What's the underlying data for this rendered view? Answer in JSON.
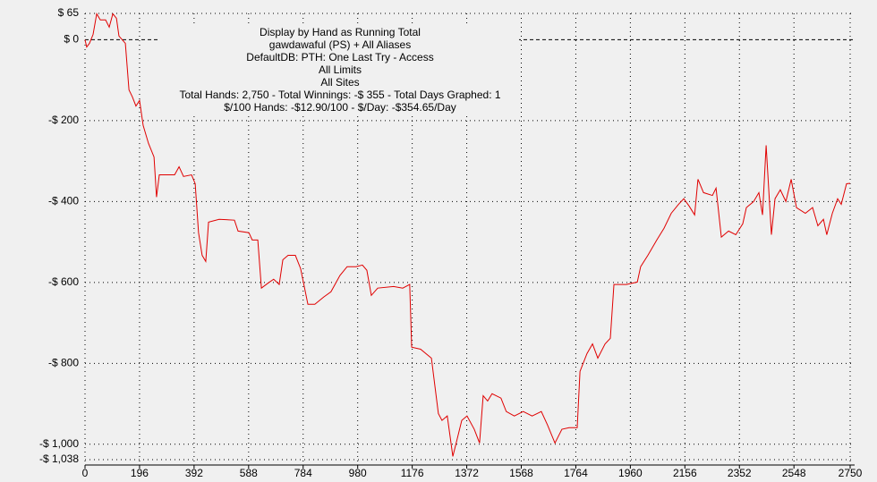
{
  "chart_data": {
    "type": "line",
    "title_lines": [
      "Display by Hand as Running Total",
      "gawdawaful (PS) + All Aliases",
      "DefaultDB: PTH: One Last Try - Access",
      "All Limits",
      "All Sites",
      "Total Hands: 2,750 - Total Winnings: -$ 355 - Total Days Graphed: 1",
      "$/100 Hands: -$12.90/100 - $/Day: -$354.65/Day"
    ],
    "xlim": [
      0,
      2750
    ],
    "xticks": [
      0,
      196,
      392,
      588,
      784,
      980,
      1176,
      1372,
      1568,
      1764,
      1960,
      2156,
      2352,
      2548,
      2750
    ],
    "ylim": [
      -1038,
      65
    ],
    "yticks": [
      {
        "value": 65,
        "label": "$ 65"
      },
      {
        "value": 0,
        "label": "$ 0"
      },
      {
        "value": -200,
        "label": "-$ 200"
      },
      {
        "value": -400,
        "label": "-$ 400"
      },
      {
        "value": -600,
        "label": "-$ 600"
      },
      {
        "value": -800,
        "label": "-$ 800"
      },
      {
        "value": -1000,
        "label": "-$ 1,000"
      },
      {
        "value": -1038,
        "label": "-$ 1,038"
      }
    ],
    "grid": true,
    "series": [
      {
        "color": "#e00000",
        "x": [
          0,
          6,
          16,
          29,
          42,
          55,
          74,
          87,
          100,
          113,
          122,
          145,
          158,
          170,
          183,
          196,
          209,
          228,
          248,
          257,
          267,
          322,
          338,
          354,
          383,
          396,
          408,
          421,
          434,
          444,
          482,
          537,
          550,
          589,
          601,
          621,
          634,
          659,
          678,
          698,
          711,
          730,
          756,
          775,
          801,
          826,
          858,
          884,
          916,
          942,
          974,
          997,
          1013,
          1029,
          1052,
          1109,
          1142,
          1167,
          1174,
          1206,
          1245,
          1257,
          1270,
          1283,
          1302,
          1322,
          1334,
          1354,
          1373,
          1399,
          1418,
          1431,
          1447,
          1463,
          1495,
          1514,
          1543,
          1575,
          1607,
          1640,
          1662,
          1689,
          1714,
          1740,
          1769,
          1779,
          1804,
          1824,
          1843,
          1869,
          1888,
          1901,
          1946,
          1985,
          1997,
          2023,
          2055,
          2081,
          2107,
          2133,
          2152,
          2171,
          2191,
          2203,
          2223,
          2255,
          2268,
          2287,
          2313,
          2339,
          2364,
          2377,
          2403,
          2422,
          2435,
          2448,
          2467,
          2480,
          2499,
          2519,
          2538,
          2557,
          2589,
          2615,
          2634,
          2654,
          2666,
          2686,
          2705,
          2718,
          2737,
          2750
        ],
        "values": [
          0,
          -18,
          -9,
          13,
          64,
          49,
          49,
          31,
          64,
          53,
          9,
          -9,
          -124,
          -141,
          -164,
          -150,
          -212,
          -256,
          -290,
          -389,
          -334,
          -334,
          -314,
          -338,
          -334,
          -356,
          -477,
          -533,
          -548,
          -451,
          -444,
          -446,
          -473,
          -477,
          -495,
          -495,
          -614,
          -601,
          -592,
          -605,
          -544,
          -533,
          -533,
          -566,
          -654,
          -654,
          -636,
          -623,
          -583,
          -561,
          -561,
          -557,
          -570,
          -632,
          -614,
          -610,
          -614,
          -605,
          -760,
          -765,
          -787,
          -853,
          -924,
          -941,
          -930,
          -1030,
          -997,
          -941,
          -930,
          -963,
          -997,
          -880,
          -893,
          -875,
          -886,
          -919,
          -930,
          -919,
          -930,
          -919,
          -952,
          -997,
          -963,
          -959,
          -959,
          -820,
          -776,
          -752,
          -787,
          -752,
          -738,
          -605,
          -605,
          -599,
          -561,
          -533,
          -495,
          -466,
          -429,
          -407,
          -393,
          -411,
          -433,
          -345,
          -378,
          -385,
          -367,
          -488,
          -473,
          -482,
          -455,
          -415,
          -400,
          -378,
          -433,
          -261,
          -482,
          -393,
          -371,
          -400,
          -345,
          -415,
          -429,
          -415,
          -460,
          -444,
          -482,
          -429,
          -393,
          -407,
          -356,
          -355
        ]
      }
    ]
  }
}
